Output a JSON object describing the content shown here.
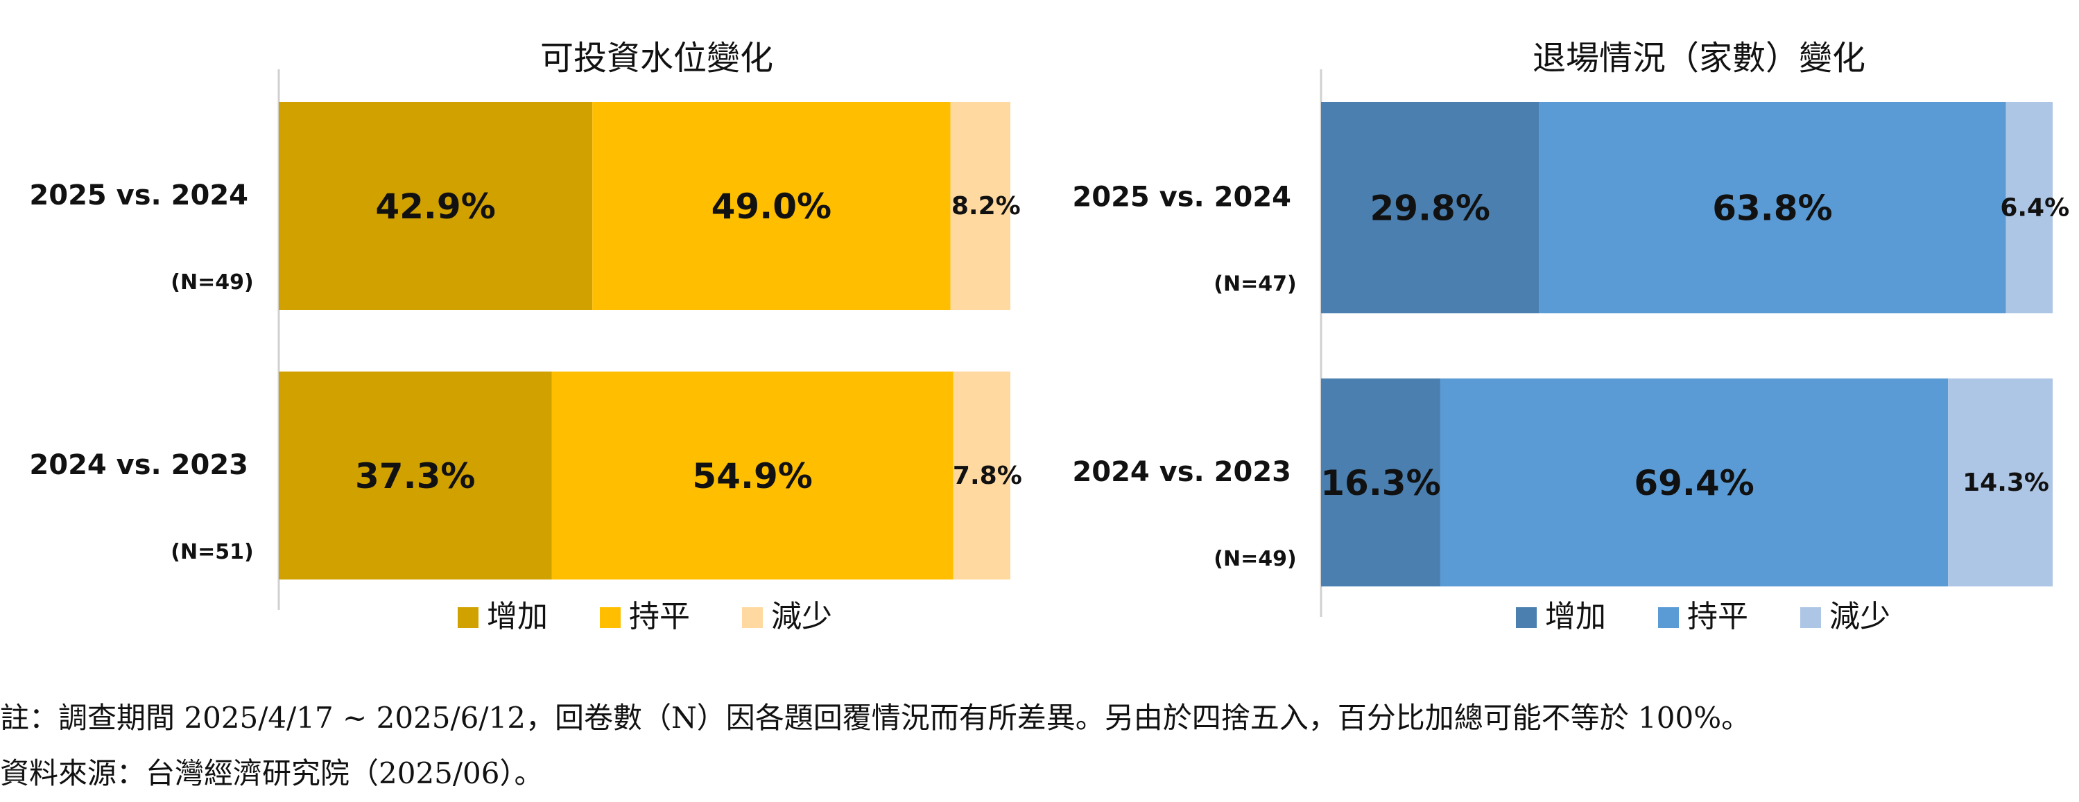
{
  "chart_data": [
    {
      "type": "bar",
      "stacked": true,
      "orientation": "horizontal",
      "title": "可投資水位變化",
      "categories": [
        "2025 vs. 2024",
        "2024 vs. 2023"
      ],
      "sample_sizes": [
        "(N=49)",
        "(N=51)"
      ],
      "series": [
        {
          "name": "增加",
          "values": [
            42.9,
            37.3
          ],
          "labels": [
            "42.9%",
            "37.3%"
          ],
          "color": "#D1A100"
        },
        {
          "name": "持平",
          "values": [
            49.0,
            54.9
          ],
          "labels": [
            "49.0%",
            "54.9%"
          ],
          "color": "#FFBF00"
        },
        {
          "name": "減少",
          "values": [
            8.2,
            7.8
          ],
          "labels": [
            "8.2%",
            "7.8%"
          ],
          "color": "#FFD9A0"
        }
      ],
      "legend_position": "bottom",
      "grid": false
    },
    {
      "type": "bar",
      "stacked": true,
      "orientation": "horizontal",
      "title": "退場情況（家數）變化",
      "categories": [
        "2025 vs. 2024",
        "2024 vs. 2023"
      ],
      "sample_sizes": [
        "(N=47)",
        "(N=49)"
      ],
      "series": [
        {
          "name": "增加",
          "values": [
            29.8,
            16.3
          ],
          "labels": [
            "29.8%",
            "16.3%"
          ],
          "color": "#4A7FB0"
        },
        {
          "name": "持平",
          "values": [
            63.8,
            69.4
          ],
          "labels": [
            "63.8%",
            "69.4%"
          ],
          "color": "#5B9BD5"
        },
        {
          "name": "減少",
          "values": [
            6.4,
            14.3
          ],
          "labels": [
            "6.4%",
            "14.3%"
          ],
          "color": "#AEC6E5"
        }
      ],
      "legend_position": "bottom",
      "grid": false
    }
  ],
  "notes": {
    "note": "註：調查期間 2025/4/17 ~ 2025/6/12，回卷數（N）因各題回覆情況而有所差異。另由於四捨五入，百分比加總可能不等於 100%。",
    "source": "資料來源：台灣經濟研究院（2025/06）。"
  }
}
